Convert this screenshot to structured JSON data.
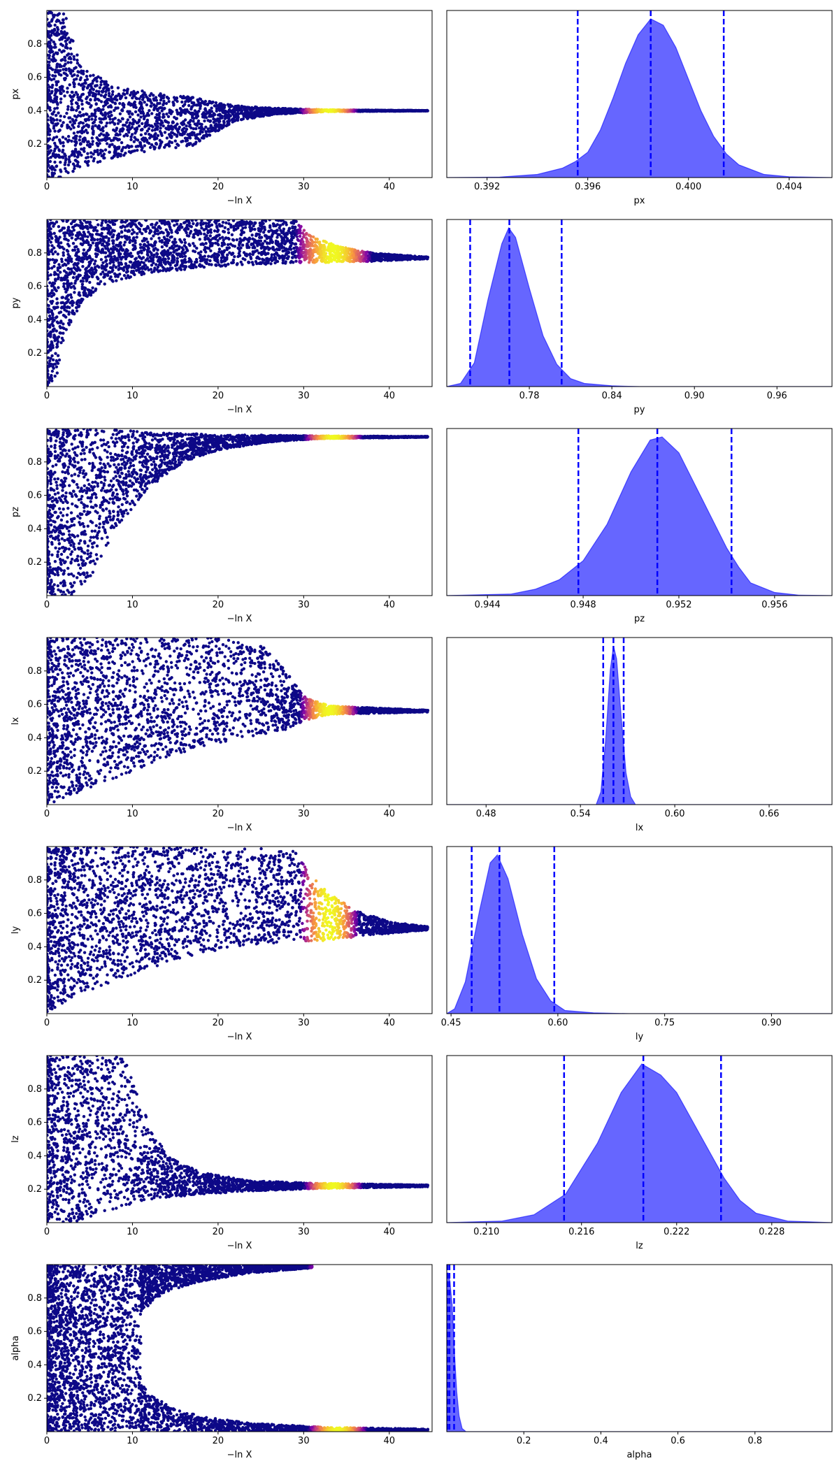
{
  "chart_data": {
    "trace_panels": [
      {
        "type": "scatter",
        "param": "px",
        "xlabel": "−ln X",
        "ylabel": "px",
        "xlim": [
          0,
          45
        ],
        "ylim": [
          0,
          1
        ],
        "xticks": [
          "0",
          "10",
          "20",
          "30",
          "40"
        ],
        "yticks": [
          "0.2",
          "0.4",
          "0.6",
          "0.8"
        ],
        "envelope": [
          [
            0,
            0.0,
            1.0
          ],
          [
            2,
            0.0,
            1.0
          ],
          [
            4,
            0.06,
            0.66
          ],
          [
            8,
            0.12,
            0.55
          ],
          [
            12,
            0.16,
            0.51
          ],
          [
            17,
            0.19,
            0.48
          ],
          [
            19,
            0.25,
            0.46
          ],
          [
            22,
            0.34,
            0.43
          ],
          [
            27,
            0.38,
            0.415
          ],
          [
            33,
            0.395,
            0.405
          ],
          [
            44.5,
            0.399,
            0.401
          ]
        ],
        "highlight_center": 33,
        "highlight_width": 3.5,
        "colormap": "plasma"
      },
      {
        "type": "scatter",
        "param": "py",
        "xlabel": "−ln X",
        "ylabel": "py",
        "xlim": [
          0,
          45
        ],
        "ylim": [
          0,
          1
        ],
        "xticks": [
          "0",
          "10",
          "20",
          "30",
          "40"
        ],
        "yticks": [
          "0.2",
          "0.4",
          "0.6",
          "0.8"
        ],
        "envelope": [
          [
            0,
            0.0,
            1.0
          ],
          [
            1,
            0.0,
            1.0
          ],
          [
            2,
            0.3,
            1.0
          ],
          [
            4,
            0.5,
            1.0
          ],
          [
            7,
            0.62,
            1.0
          ],
          [
            12,
            0.68,
            1.0
          ],
          [
            20,
            0.72,
            1.0
          ],
          [
            29,
            0.74,
            1.0
          ],
          [
            31,
            0.74,
            0.9
          ],
          [
            34,
            0.745,
            0.84
          ],
          [
            38,
            0.75,
            0.8
          ],
          [
            44.5,
            0.765,
            0.775
          ]
        ],
        "highlight_center": 33.5,
        "highlight_width": 4.5,
        "colormap": "plasma"
      },
      {
        "type": "scatter",
        "param": "pz",
        "xlabel": "−ln X",
        "ylabel": "pz",
        "xlim": [
          0,
          45
        ],
        "ylim": [
          0,
          1
        ],
        "xticks": [
          "0",
          "10",
          "20",
          "30",
          "40"
        ],
        "yticks": [
          "0.2",
          "0.4",
          "0.6",
          "0.8"
        ],
        "envelope": [
          [
            0,
            0.0,
            1.0
          ],
          [
            3,
            0.0,
            1.0
          ],
          [
            5,
            0.1,
            1.0
          ],
          [
            8,
            0.4,
            0.99
          ],
          [
            12,
            0.65,
            0.98
          ],
          [
            16,
            0.8,
            0.97
          ],
          [
            20,
            0.87,
            0.965
          ],
          [
            26,
            0.92,
            0.96
          ],
          [
            32,
            0.94,
            0.955
          ],
          [
            44.5,
            0.948,
            0.952
          ]
        ],
        "highlight_center": 33.5,
        "highlight_width": 3.5,
        "colormap": "plasma"
      },
      {
        "type": "scatter",
        "param": "lx",
        "xlabel": "−ln X",
        "ylabel": "lx",
        "xlim": [
          0,
          45
        ],
        "ylim": [
          0,
          1
        ],
        "xticks": [
          "0",
          "10",
          "20",
          "30",
          "40"
        ],
        "yticks": [
          "0.2",
          "0.4",
          "0.6",
          "0.8"
        ],
        "envelope": [
          [
            0,
            0.0,
            1.0
          ],
          [
            5,
            0.1,
            1.0
          ],
          [
            10,
            0.2,
            1.0
          ],
          [
            15,
            0.3,
            1.0
          ],
          [
            20,
            0.37,
            1.0
          ],
          [
            25,
            0.42,
            0.96
          ],
          [
            28,
            0.45,
            0.8
          ],
          [
            30,
            0.5,
            0.65
          ],
          [
            33,
            0.54,
            0.59
          ],
          [
            44.5,
            0.555,
            0.565
          ]
        ],
        "highlight_center": 33,
        "highlight_width": 3.5,
        "colormap": "plasma"
      },
      {
        "type": "scatter",
        "param": "ly",
        "xlabel": "−ln X",
        "ylabel": "ly",
        "xlim": [
          0,
          45
        ],
        "ylim": [
          0,
          1
        ],
        "xticks": [
          "0",
          "10",
          "20",
          "30",
          "40"
        ],
        "yticks": [
          "0.2",
          "0.4",
          "0.6",
          "0.8"
        ],
        "envelope": [
          [
            0,
            0.0,
            1.0
          ],
          [
            3,
            0.1,
            1.0
          ],
          [
            8,
            0.2,
            1.0
          ],
          [
            15,
            0.32,
            1.0
          ],
          [
            22,
            0.4,
            1.0
          ],
          [
            29,
            0.43,
            0.97
          ],
          [
            31,
            0.43,
            0.82
          ],
          [
            33,
            0.44,
            0.72
          ],
          [
            36,
            0.46,
            0.62
          ],
          [
            40,
            0.48,
            0.55
          ],
          [
            44.5,
            0.5,
            0.52
          ]
        ],
        "highlight_center": 33,
        "highlight_width": 3.5,
        "colormap": "plasma"
      },
      {
        "type": "scatter",
        "param": "lz",
        "xlabel": "−ln X",
        "ylabel": "lz",
        "xlim": [
          0,
          45
        ],
        "ylim": [
          0,
          1
        ],
        "xticks": [
          "0",
          "10",
          "20",
          "30",
          "40"
        ],
        "yticks": [
          "0.2",
          "0.4",
          "0.6",
          "0.8"
        ],
        "envelope": [
          [
            0,
            0.0,
            1.0
          ],
          [
            3,
            0.0,
            1.0
          ],
          [
            6,
            0.05,
            1.0
          ],
          [
            9,
            0.1,
            1.0
          ],
          [
            11,
            0.13,
            0.7
          ],
          [
            14,
            0.15,
            0.4
          ],
          [
            18,
            0.17,
            0.3
          ],
          [
            24,
            0.19,
            0.25
          ],
          [
            32,
            0.205,
            0.235
          ],
          [
            44.5,
            0.215,
            0.225
          ]
        ],
        "highlight_center": 33.5,
        "highlight_width": 3.5,
        "colormap": "plasma"
      },
      {
        "type": "scatter",
        "param": "alpha",
        "xlabel": "−ln X",
        "ylabel": "alpha",
        "xlim": [
          0,
          45
        ],
        "ylim": [
          0,
          1
        ],
        "xticks": [
          "0",
          "10",
          "20",
          "30",
          "40"
        ],
        "yticks": [
          "0.2",
          "0.4",
          "0.6",
          "0.8"
        ],
        "envelope": [
          [
            0,
            0.0,
            1.0
          ],
          [
            9,
            0.0,
            1.0
          ],
          [
            11,
            0.0,
            1.0
          ],
          [
            11.5,
            0.0,
            0.25
          ],
          [
            11.5,
            0.75,
            1.0
          ]
        ],
        "two_branch": true,
        "upper_branch": [
          [
            11,
            0.72,
            1.0
          ],
          [
            14,
            0.84,
            1.0
          ],
          [
            18,
            0.9,
            1.0
          ],
          [
            24,
            0.95,
            1.0
          ],
          [
            31,
            0.98,
            1.0
          ]
        ],
        "lower_branch": [
          [
            11,
            0.0,
            0.28
          ],
          [
            14,
            0.0,
            0.16
          ],
          [
            18,
            0.0,
            0.09
          ],
          [
            24,
            0.0,
            0.05
          ],
          [
            33,
            0.0,
            0.025
          ],
          [
            44.5,
            0.005,
            0.015
          ]
        ],
        "highlight_center": 34,
        "highlight_width": 3.5,
        "colormap": "plasma"
      }
    ],
    "posterior_panels": [
      {
        "type": "area",
        "param": "px",
        "xlabel": "px",
        "xlim": [
          0.3904,
          0.4057
        ],
        "xticks": [
          0.392,
          0.396,
          0.4,
          0.404
        ],
        "xtick_labels": [
          "0.392",
          "0.396",
          "0.400",
          "0.404"
        ],
        "density": [
          [
            0.3904,
            0.0
          ],
          [
            0.3925,
            0.003
          ],
          [
            0.394,
            0.02
          ],
          [
            0.395,
            0.06
          ],
          [
            0.3955,
            0.1
          ],
          [
            0.396,
            0.16
          ],
          [
            0.3965,
            0.3
          ],
          [
            0.397,
            0.5
          ],
          [
            0.3975,
            0.72
          ],
          [
            0.398,
            0.9
          ],
          [
            0.3985,
            1.0
          ],
          [
            0.399,
            0.96
          ],
          [
            0.3995,
            0.82
          ],
          [
            0.4,
            0.62
          ],
          [
            0.4005,
            0.42
          ],
          [
            0.401,
            0.26
          ],
          [
            0.4015,
            0.15
          ],
          [
            0.402,
            0.08
          ],
          [
            0.403,
            0.02
          ],
          [
            0.404,
            0.005
          ],
          [
            0.4057,
            0.0
          ]
        ],
        "quantiles": [
          0.3956,
          0.3985,
          0.4014
        ],
        "color": "#0000ff"
      },
      {
        "type": "area",
        "param": "py",
        "xlabel": "py",
        "xlim": [
          0.72,
          1.0
        ],
        "xticks": [
          0.78,
          0.84,
          0.9,
          0.96
        ],
        "xtick_labels": [
          "0.78",
          "0.84",
          "0.90",
          "0.96"
        ],
        "density": [
          [
            0.72,
            0.0
          ],
          [
            0.73,
            0.02
          ],
          [
            0.74,
            0.15
          ],
          [
            0.75,
            0.55
          ],
          [
            0.76,
            0.9
          ],
          [
            0.765,
            1.0
          ],
          [
            0.77,
            0.94
          ],
          [
            0.78,
            0.62
          ],
          [
            0.79,
            0.32
          ],
          [
            0.8,
            0.14
          ],
          [
            0.81,
            0.05
          ],
          [
            0.82,
            0.02
          ],
          [
            0.84,
            0.005
          ],
          [
            0.86,
            0.0
          ],
          [
            1.0,
            0.0
          ]
        ],
        "quantiles": [
          0.737,
          0.7655,
          0.8035
        ],
        "color": "#0000ff"
      },
      {
        "type": "area",
        "param": "pz",
        "xlabel": "pz",
        "xlim": [
          0.9423,
          0.9584
        ],
        "xticks": [
          0.944,
          0.948,
          0.952,
          0.956
        ],
        "xtick_labels": [
          "0.944",
          "0.948",
          "0.952",
          "0.956"
        ],
        "density": [
          [
            0.9423,
            0.0
          ],
          [
            0.945,
            0.01
          ],
          [
            0.946,
            0.04
          ],
          [
            0.947,
            0.1
          ],
          [
            0.948,
            0.22
          ],
          [
            0.949,
            0.45
          ],
          [
            0.95,
            0.78
          ],
          [
            0.9508,
            0.98
          ],
          [
            0.9513,
            1.0
          ],
          [
            0.952,
            0.9
          ],
          [
            0.953,
            0.6
          ],
          [
            0.954,
            0.3
          ],
          [
            0.9545,
            0.18
          ],
          [
            0.955,
            0.08
          ],
          [
            0.956,
            0.02
          ],
          [
            0.957,
            0.003
          ],
          [
            0.9584,
            0.0
          ]
        ],
        "quantiles": [
          0.9478,
          0.9511,
          0.9542
        ],
        "color": "#0000ff"
      },
      {
        "type": "area",
        "param": "lx",
        "xlabel": "lx",
        "xlim": [
          0.455,
          0.7
        ],
        "xticks": [
          0.48,
          0.54,
          0.6,
          0.66
        ],
        "xtick_labels": [
          "0.48",
          "0.54",
          "0.60",
          "0.66"
        ],
        "density": [
          [
            0.455,
            0.0
          ],
          [
            0.55,
            0.0
          ],
          [
            0.553,
            0.08
          ],
          [
            0.556,
            0.4
          ],
          [
            0.559,
            0.85
          ],
          [
            0.561,
            1.0
          ],
          [
            0.563,
            0.92
          ],
          [
            0.566,
            0.55
          ],
          [
            0.569,
            0.2
          ],
          [
            0.572,
            0.05
          ],
          [
            0.575,
            0.0
          ],
          [
            0.7,
            0.0
          ]
        ],
        "quantiles": [
          0.5545,
          0.561,
          0.5675
        ],
        "color": "#0000ff"
      },
      {
        "type": "area",
        "param": "ly",
        "xlabel": "ly",
        "xlim": [
          0.444,
          0.985
        ],
        "xticks": [
          0.45,
          0.6,
          0.75,
          0.9
        ],
        "xtick_labels": [
          "0.45",
          "0.60",
          "0.75",
          "0.90"
        ],
        "density": [
          [
            0.444,
            0.0
          ],
          [
            0.455,
            0.03
          ],
          [
            0.47,
            0.2
          ],
          [
            0.49,
            0.65
          ],
          [
            0.505,
            0.95
          ],
          [
            0.515,
            1.0
          ],
          [
            0.53,
            0.85
          ],
          [
            0.55,
            0.5
          ],
          [
            0.57,
            0.22
          ],
          [
            0.59,
            0.08
          ],
          [
            0.61,
            0.02
          ],
          [
            0.65,
            0.005
          ],
          [
            0.7,
            0.0
          ],
          [
            0.985,
            0.0
          ]
        ],
        "quantiles": [
          0.479,
          0.518,
          0.595
        ],
        "color": "#0000ff"
      },
      {
        "type": "area",
        "param": "lz",
        "xlabel": "lz",
        "xlim": [
          0.2075,
          0.2318
        ],
        "xticks": [
          0.21,
          0.216,
          0.222,
          0.228
        ],
        "xtick_labels": [
          "0.210",
          "0.216",
          "0.222",
          "0.228"
        ],
        "density": [
          [
            0.2075,
            0.0
          ],
          [
            0.211,
            0.01
          ],
          [
            0.213,
            0.05
          ],
          [
            0.215,
            0.18
          ],
          [
            0.217,
            0.5
          ],
          [
            0.2185,
            0.82
          ],
          [
            0.2198,
            1.0
          ],
          [
            0.221,
            0.93
          ],
          [
            0.222,
            0.82
          ],
          [
            0.2235,
            0.55
          ],
          [
            0.225,
            0.28
          ],
          [
            0.226,
            0.14
          ],
          [
            0.227,
            0.06
          ],
          [
            0.229,
            0.01
          ],
          [
            0.2318,
            0.0
          ]
        ],
        "quantiles": [
          0.2149,
          0.2199,
          0.2248
        ],
        "color": "#0000ff"
      },
      {
        "type": "area",
        "param": "alpha",
        "xlabel": "alpha",
        "xlim": [
          0.0,
          1.0
        ],
        "xticks": [
          0.2,
          0.4,
          0.6,
          0.8
        ],
        "xtick_labels": [
          "0.2",
          "0.4",
          "0.6",
          "0.8"
        ],
        "density": [
          [
            0.0,
            0.98
          ],
          [
            0.003,
            1.0
          ],
          [
            0.008,
            0.95
          ],
          [
            0.014,
            0.8
          ],
          [
            0.02,
            0.5
          ],
          [
            0.026,
            0.25
          ],
          [
            0.032,
            0.1
          ],
          [
            0.04,
            0.02
          ],
          [
            0.05,
            0.0
          ],
          [
            1.0,
            0.0
          ]
        ],
        "quantiles": [
          0.002,
          0.007,
          0.019
        ],
        "color": "#0000ff"
      }
    ]
  }
}
